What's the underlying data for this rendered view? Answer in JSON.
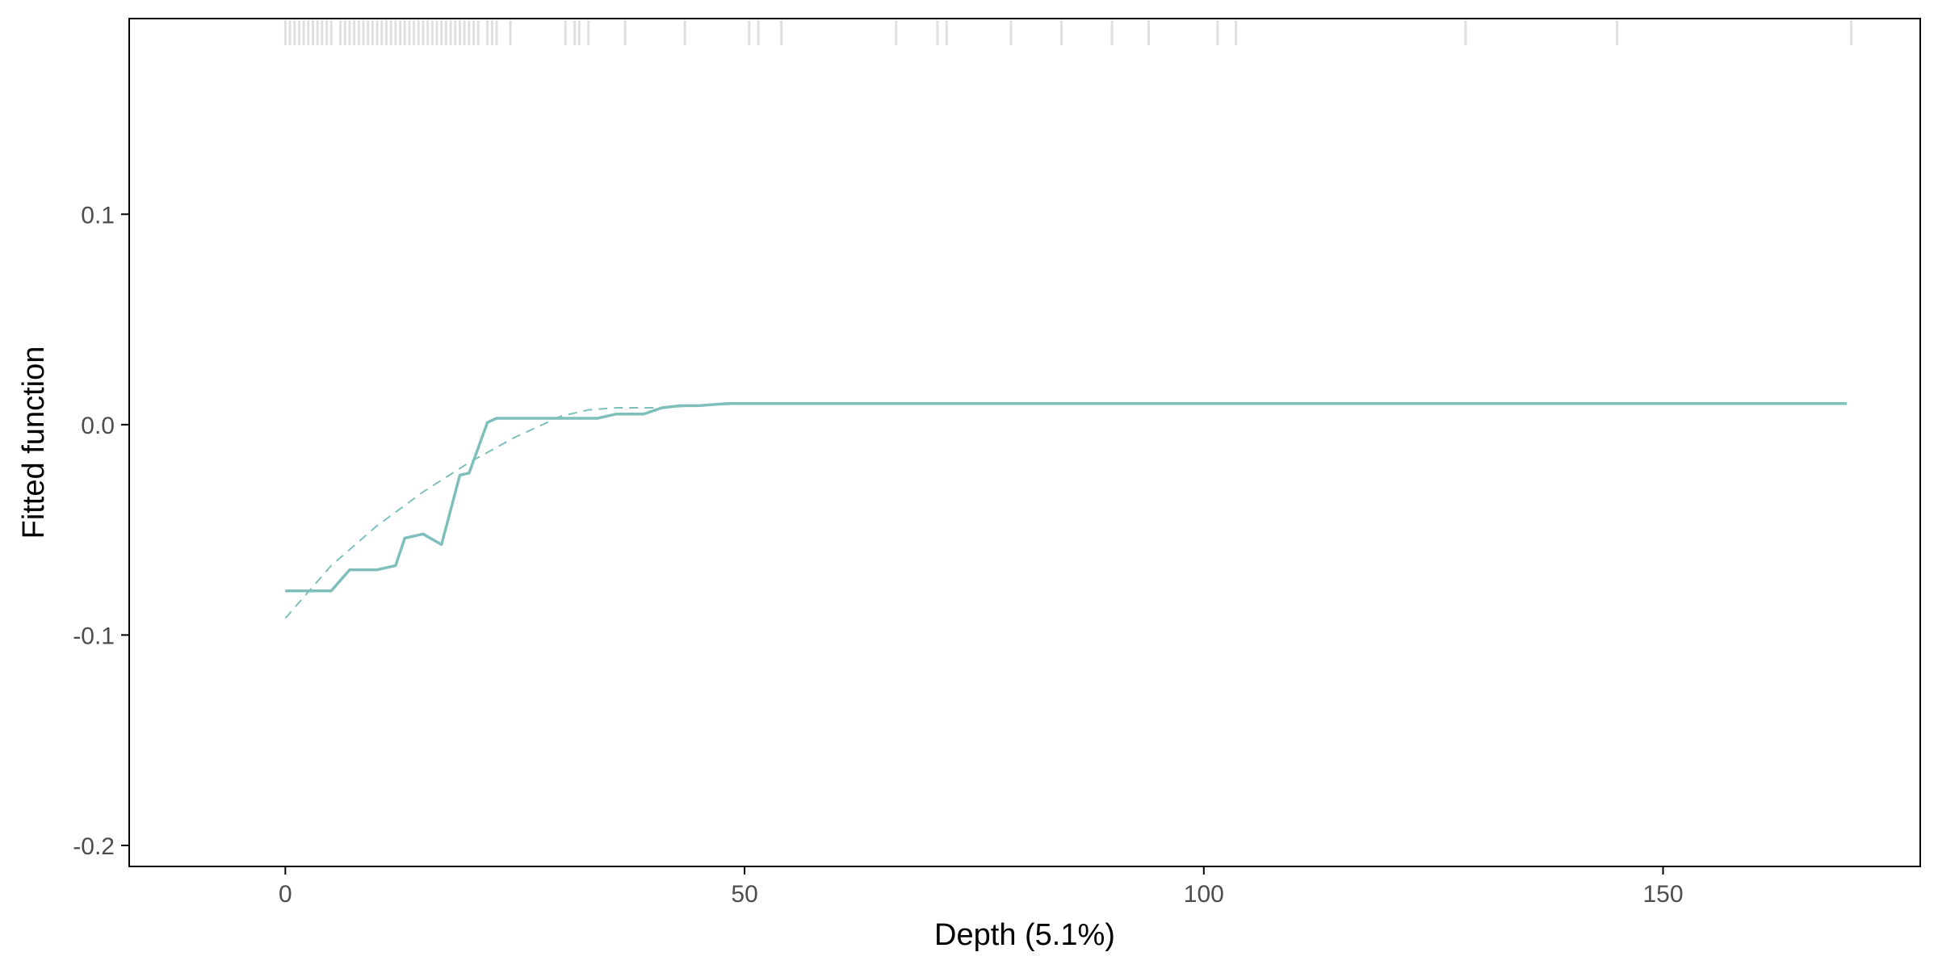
{
  "colors": {
    "line": "#7fbfbb",
    "rug": "#e0e0e0",
    "axis": "#000000",
    "tick_text": "#4d4d4d"
  },
  "chart_data": {
    "type": "line",
    "xlabel": "Depth  (5.1%)",
    "ylabel": "Fitted function",
    "xlim": [
      -17,
      178
    ],
    "ylim": [
      -0.21,
      0.193
    ],
    "x_ticks": [
      0,
      50,
      100,
      150
    ],
    "x_tick_labels": [
      "0",
      "50",
      "100",
      "150"
    ],
    "y_ticks": [
      -0.2,
      -0.1,
      0.0,
      0.1
    ],
    "y_tick_labels": [
      "-0.2",
      "-0.1",
      "0.0",
      "0.1"
    ],
    "grid": false,
    "series": [
      {
        "style": "solid",
        "x": [
          0,
          2,
          4,
          5,
          7,
          8,
          10,
          12,
          13,
          15,
          17,
          19,
          20,
          22,
          23,
          25,
          28,
          30,
          33,
          34,
          36,
          39,
          41,
          43,
          45,
          48,
          50,
          60,
          80,
          100,
          120,
          140,
          160,
          170
        ],
        "y": [
          -0.079,
          -0.079,
          -0.079,
          -0.079,
          -0.069,
          -0.069,
          -0.069,
          -0.067,
          -0.054,
          -0.052,
          -0.057,
          -0.024,
          -0.023,
          0.001,
          0.003,
          0.003,
          0.003,
          0.003,
          0.003,
          0.003,
          0.005,
          0.005,
          0.008,
          0.009,
          0.009,
          0.01,
          0.01,
          0.01,
          0.01,
          0.01,
          0.01,
          0.01,
          0.01,
          0.01
        ]
      },
      {
        "style": "dashed",
        "x": [
          0,
          5,
          10,
          15,
          20,
          25,
          30,
          33,
          36,
          40,
          45,
          50,
          60,
          170
        ],
        "y": [
          -0.092,
          -0.067,
          -0.048,
          -0.032,
          -0.018,
          -0.006,
          0.004,
          0.007,
          0.008,
          0.008,
          0.009,
          0.01,
          0.01,
          0.01
        ]
      }
    ],
    "rug_x": [
      0,
      0.5,
      1,
      1.5,
      2,
      2.5,
      3,
      3.5,
      4,
      4.5,
      5,
      6,
      6.5,
      7,
      7.5,
      8,
      8.5,
      9,
      9.5,
      10,
      10.5,
      11,
      11.5,
      12,
      12.5,
      13,
      13.5,
      14,
      14.5,
      15,
      15.5,
      16,
      16.5,
      17,
      17.5,
      18,
      18.5,
      19,
      19.5,
      20,
      20.5,
      21,
      22,
      22.5,
      23,
      24.5,
      30.5,
      31.5,
      32,
      33,
      37,
      43.5,
      50.5,
      51.5,
      54,
      66.5,
      71,
      72,
      79,
      84.5,
      90,
      94,
      101.5,
      103.5,
      128.5,
      145,
      170.5
    ]
  }
}
